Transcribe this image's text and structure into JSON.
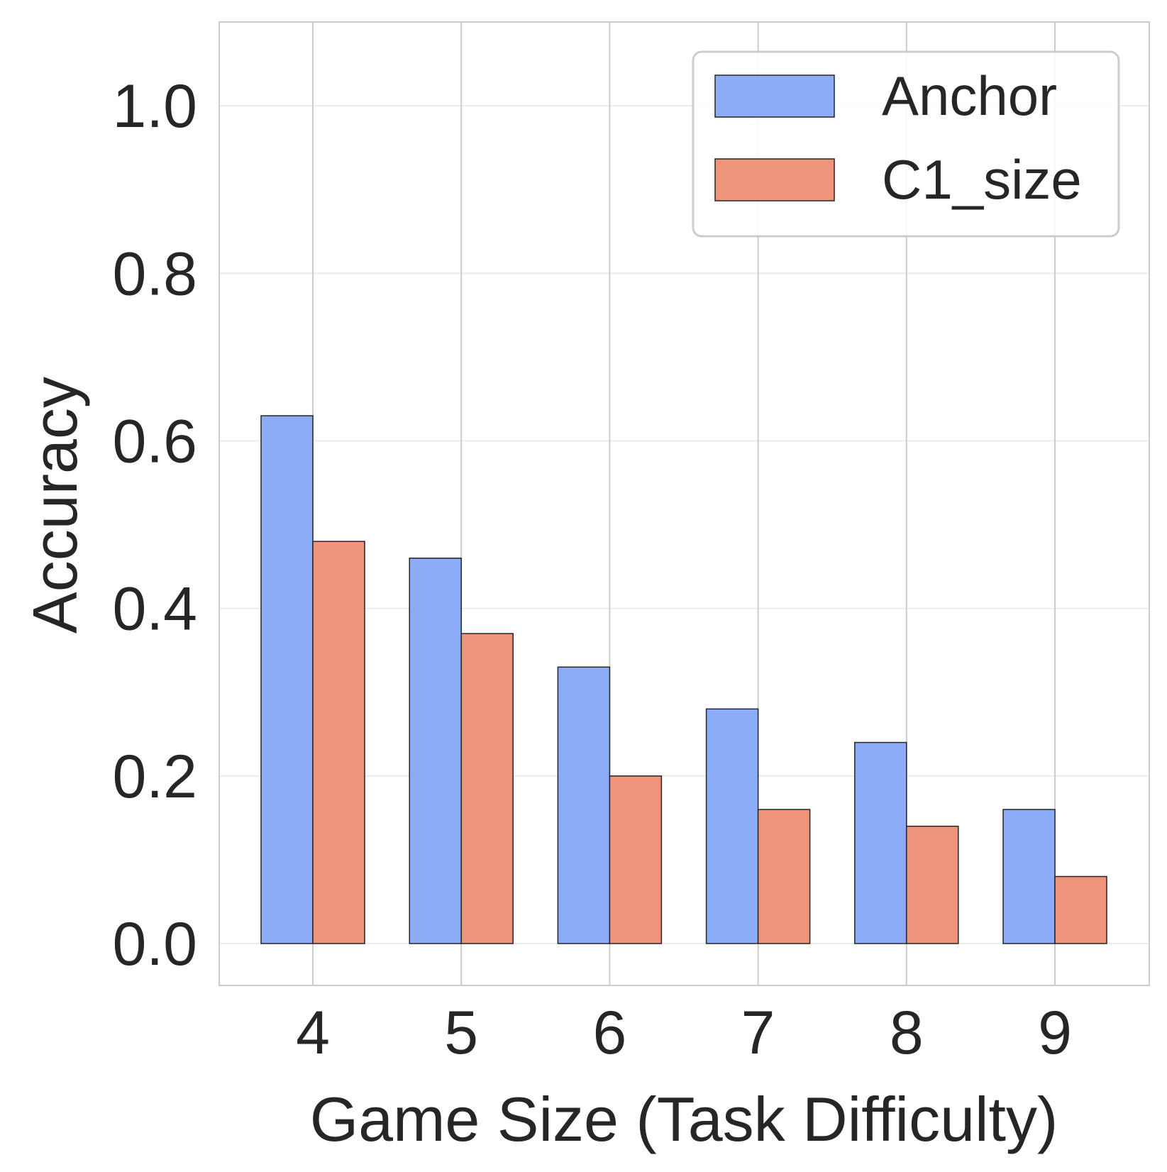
{
  "chart_data": {
    "type": "bar",
    "title": "",
    "xlabel": "Game Size (Task Difficulty)",
    "ylabel": "Accuracy",
    "categories": [
      "4",
      "5",
      "6",
      "7",
      "8",
      "9"
    ],
    "ylim": [
      -0.05,
      1.1
    ],
    "yticks": [
      0.0,
      0.2,
      0.4,
      0.6,
      0.8,
      1.0
    ],
    "ytick_labels": [
      "0.0",
      "0.2",
      "0.4",
      "0.6",
      "0.8",
      "1.0"
    ],
    "grid": true,
    "legend_position": "top-right",
    "series": [
      {
        "name": "Anchor",
        "color": "#8dacf7",
        "values": [
          0.63,
          0.46,
          0.33,
          0.28,
          0.24,
          0.16
        ]
      },
      {
        "name": "C1_size",
        "color": "#ef947b",
        "values": [
          0.48,
          0.37,
          0.2,
          0.16,
          0.14,
          0.08
        ]
      }
    ]
  }
}
